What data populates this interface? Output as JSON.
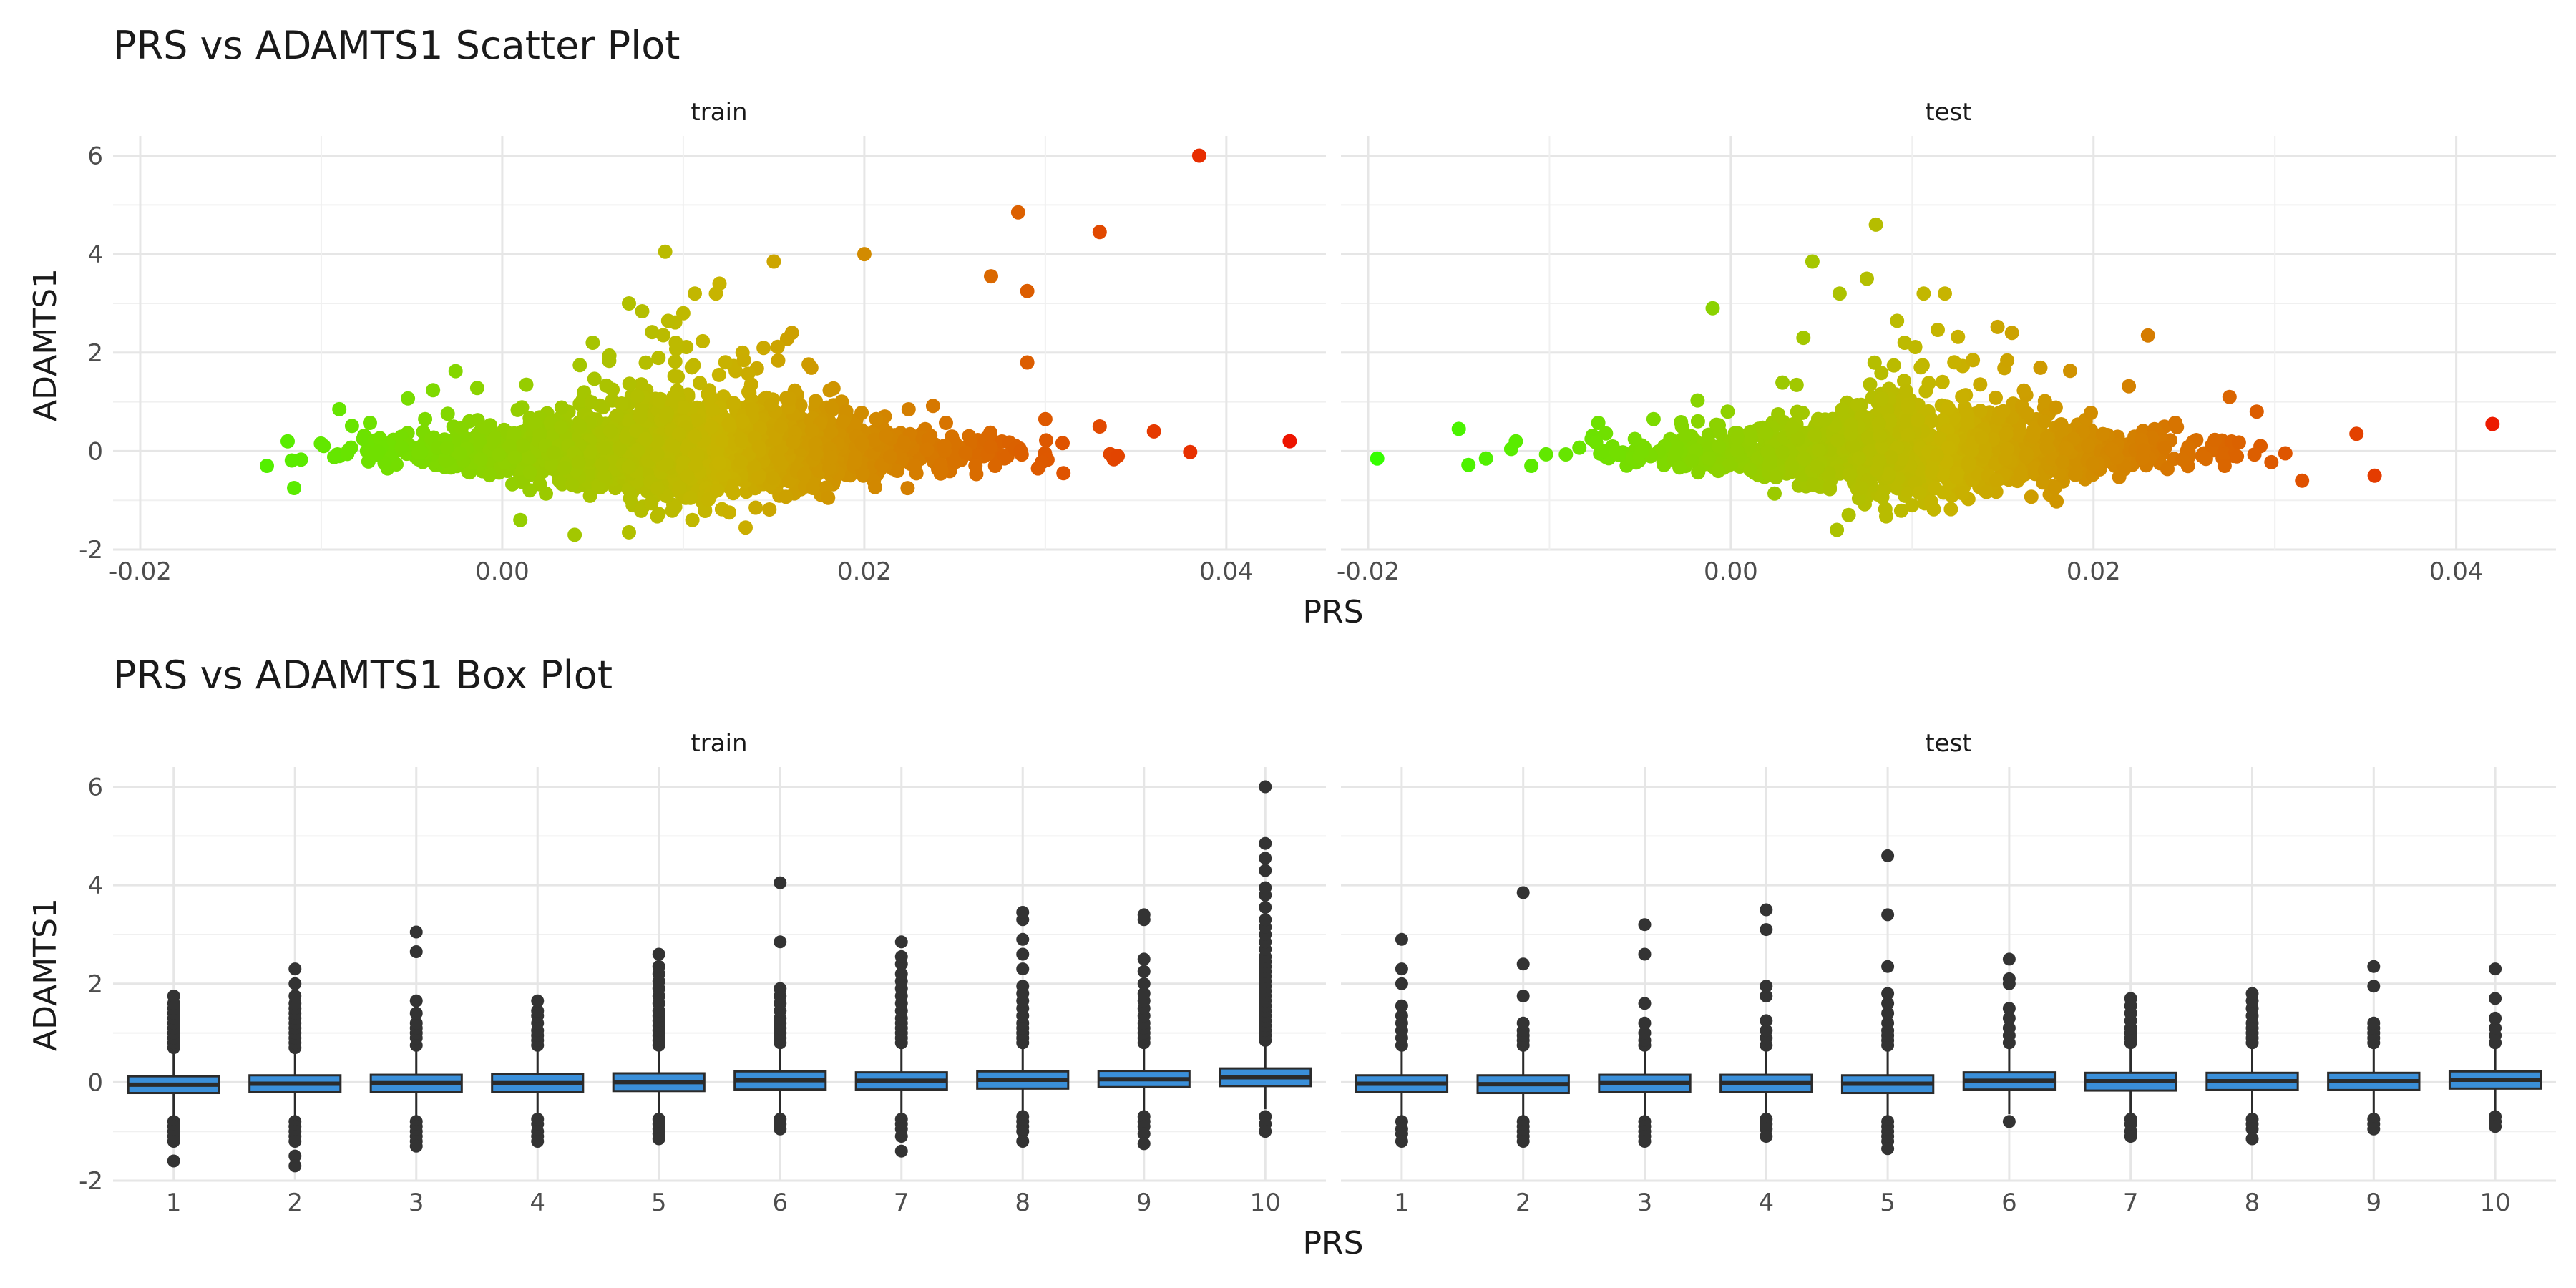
{
  "chart_data": [
    {
      "type": "scatter",
      "title": "PRS vs ADAMTS1 Scatter Plot",
      "xlabel": "PRS",
      "ylabel": "ADAMTS1",
      "facets": [
        "train",
        "test"
      ],
      "xlim": [
        -0.0215,
        0.0455
      ],
      "ylim": [
        -2,
        6.4
      ],
      "x_ticks": [
        -0.02,
        0.0,
        0.02,
        0.04
      ],
      "x_tick_labels": [
        "-0.02",
        "0.00",
        "0.02",
        "0.04"
      ],
      "y_ticks": [
        -2,
        0,
        2,
        4,
        6
      ],
      "y_tick_labels": [
        "-2",
        "0",
        "2",
        "4",
        "6"
      ],
      "color_gradient": {
        "low": "#33ff00",
        "mid": "#c8b400",
        "high": "#ee1100",
        "low_value": -0.02,
        "high_value": 0.044
      },
      "grid": true,
      "legend": "none",
      "panels": {
        "train": {
          "x_range": [
            -0.014,
            0.044
          ],
          "points": [
            [
              0.0385,
              6.0
            ],
            [
              0.0285,
              4.85
            ],
            [
              0.033,
              4.45
            ],
            [
              0.009,
              4.05
            ],
            [
              0.02,
              4.0
            ],
            [
              0.015,
              3.85
            ],
            [
              0.027,
              3.55
            ],
            [
              0.029,
              3.25
            ],
            [
              0.007,
              3.0
            ],
            [
              0.012,
              3.4
            ],
            [
              0.01,
              2.8
            ],
            [
              0.029,
              1.8
            ],
            [
              0.0435,
              0.2
            ],
            [
              0.038,
              -0.02
            ],
            [
              0.036,
              0.4
            ],
            [
              0.033,
              0.5
            ],
            [
              0.034,
              -0.1
            ],
            [
              0.03,
              0.65
            ],
            [
              0.031,
              -0.45
            ],
            [
              -0.009,
              0.85
            ],
            [
              -0.013,
              -0.3
            ],
            [
              -0.0115,
              -0.75
            ],
            [
              0.001,
              -1.4
            ],
            [
              0.004,
              -1.7
            ],
            [
              0.007,
              -1.65
            ],
            [
              0.0105,
              -1.4
            ],
            [
              0.014,
              -1.15
            ],
            [
              0.018,
              -0.95
            ],
            [
              0.005,
              2.2
            ],
            [
              0.016,
              2.4
            ]
          ]
        },
        "test": {
          "x_range": [
            -0.02,
            0.043
          ],
          "points": [
            [
              0.008,
              4.6
            ],
            [
              0.0045,
              3.85
            ],
            [
              0.0075,
              3.5
            ],
            [
              0.006,
              3.2
            ],
            [
              -0.001,
              2.9
            ],
            [
              0.023,
              2.35
            ],
            [
              0.0155,
              2.4
            ],
            [
              0.0275,
              1.1
            ],
            [
              0.042,
              0.55
            ],
            [
              0.0355,
              -0.5
            ],
            [
              0.0315,
              -0.6
            ],
            [
              -0.0195,
              -0.15
            ],
            [
              -0.015,
              0.45
            ],
            [
              -0.0135,
              -0.15
            ],
            [
              -0.011,
              -0.3
            ],
            [
              0.0065,
              -1.3
            ],
            [
              0.01,
              -1.1
            ],
            [
              0.004,
              2.3
            ],
            [
              0.029,
              0.8
            ],
            [
              0.0345,
              0.35
            ]
          ]
        }
      }
    },
    {
      "type": "box",
      "title": "PRS vs ADAMTS1 Box Plot",
      "xlabel": "PRS",
      "ylabel": "ADAMTS1",
      "facets": [
        "train",
        "test"
      ],
      "categories": [
        "1",
        "2",
        "3",
        "4",
        "5",
        "6",
        "7",
        "8",
        "9",
        "10"
      ],
      "ylim": [
        -2,
        6.4
      ],
      "y_ticks": [
        -2,
        0,
        2,
        4,
        6
      ],
      "y_tick_labels": [
        "-2",
        "0",
        "2",
        "4",
        "6"
      ],
      "box_fill": "#3a8fd9",
      "box_stroke": "#2b2b2b",
      "grid": true,
      "legend": "none",
      "panels": {
        "train": [
          {
            "q1": -0.22,
            "median": -0.05,
            "q3": 0.12,
            "whisker_low": -0.72,
            "whisker_high": 0.6,
            "outliers": [
              0.7,
              0.8,
              0.9,
              1.0,
              1.1,
              1.2,
              1.3,
              1.4,
              1.5,
              1.6,
              1.75,
              -0.8,
              -0.9,
              -1.0,
              -1.1,
              -1.2,
              -1.6
            ]
          },
          {
            "q1": -0.2,
            "median": -0.03,
            "q3": 0.14,
            "whisker_low": -0.7,
            "whisker_high": 0.65,
            "outliers": [
              0.7,
              0.8,
              0.9,
              1.0,
              1.1,
              1.2,
              1.3,
              1.4,
              1.5,
              1.6,
              1.75,
              2.0,
              2.3,
              -0.8,
              -0.9,
              -1.0,
              -1.1,
              -1.2,
              -1.5,
              -1.7
            ]
          },
          {
            "q1": -0.2,
            "median": -0.02,
            "q3": 0.15,
            "whisker_low": -0.7,
            "whisker_high": 0.66,
            "outliers": [
              0.75,
              0.9,
              1.0,
              1.1,
              1.2,
              1.4,
              1.65,
              2.65,
              3.05,
              -0.8,
              -0.9,
              -1.0,
              -1.1,
              -1.2,
              -1.3
            ]
          },
          {
            "q1": -0.2,
            "median": -0.02,
            "q3": 0.16,
            "whisker_low": -0.68,
            "whisker_high": 0.67,
            "outliers": [
              0.75,
              0.85,
              0.95,
              1.05,
              1.2,
              1.35,
              1.45,
              1.65,
              -0.75,
              -0.85,
              -1.0,
              -1.1,
              -1.2
            ]
          },
          {
            "q1": -0.18,
            "median": 0.0,
            "q3": 0.18,
            "whisker_low": -0.68,
            "whisker_high": 0.68,
            "outliers": [
              0.75,
              0.85,
              0.95,
              1.05,
              1.15,
              1.25,
              1.35,
              1.45,
              1.6,
              1.75,
              1.9,
              2.05,
              2.2,
              2.35,
              2.6,
              -0.75,
              -0.85,
              -0.95,
              -1.05,
              -1.15
            ]
          },
          {
            "q1": -0.15,
            "median": 0.04,
            "q3": 0.22,
            "whisker_low": -0.65,
            "whisker_high": 0.72,
            "outliers": [
              0.8,
              0.9,
              1.0,
              1.1,
              1.2,
              1.3,
              1.45,
              1.6,
              1.75,
              1.9,
              2.85,
              4.05,
              -0.75,
              -0.85,
              -0.95
            ]
          },
          {
            "q1": -0.15,
            "median": 0.03,
            "q3": 0.2,
            "whisker_low": -0.65,
            "whisker_high": 0.7,
            "outliers": [
              0.8,
              0.9,
              1.0,
              1.1,
              1.2,
              1.3,
              1.45,
              1.6,
              1.75,
              1.9,
              2.05,
              2.2,
              2.4,
              2.55,
              2.85,
              -0.75,
              -0.85,
              -0.95,
              -1.1,
              -1.4
            ]
          },
          {
            "q1": -0.13,
            "median": 0.05,
            "q3": 0.22,
            "whisker_low": -0.62,
            "whisker_high": 0.72,
            "outliers": [
              0.8,
              0.9,
              1.0,
              1.1,
              1.2,
              1.35,
              1.5,
              1.65,
              1.8,
              1.95,
              2.3,
              2.6,
              2.9,
              3.3,
              3.45,
              -0.7,
              -0.8,
              -0.9,
              -1.0,
              -1.2
            ]
          },
          {
            "q1": -0.1,
            "median": 0.06,
            "q3": 0.23,
            "whisker_low": -0.6,
            "whisker_high": 0.74,
            "outliers": [
              0.8,
              0.9,
              1.0,
              1.1,
              1.2,
              1.35,
              1.5,
              1.65,
              1.8,
              2.0,
              2.25,
              2.5,
              3.3,
              3.4,
              -0.7,
              -0.8,
              -0.9,
              -1.05,
              -1.25
            ]
          },
          {
            "q1": -0.08,
            "median": 0.1,
            "q3": 0.28,
            "whisker_low": -0.55,
            "whisker_high": 0.8,
            "outliers": [
              0.85,
              0.95,
              1.05,
              1.15,
              1.25,
              1.35,
              1.45,
              1.55,
              1.65,
              1.75,
              1.85,
              1.95,
              2.05,
              2.15,
              2.25,
              2.35,
              2.45,
              2.55,
              2.7,
              2.85,
              3.0,
              3.15,
              3.3,
              3.55,
              3.8,
              3.95,
              4.3,
              4.55,
              4.85,
              6.0,
              -0.7,
              -0.85,
              -1.0
            ]
          }
        ],
        "test": [
          {
            "q1": -0.2,
            "median": -0.03,
            "q3": 0.14,
            "whisker_low": -0.7,
            "whisker_high": 0.64,
            "outliers": [
              0.75,
              0.9,
              1.05,
              1.2,
              1.35,
              1.55,
              2.0,
              2.3,
              2.9,
              -0.8,
              -0.95,
              -1.05,
              -1.2
            ]
          },
          {
            "q1": -0.22,
            "median": -0.04,
            "q3": 0.14,
            "whisker_low": -0.72,
            "whisker_high": 0.64,
            "outliers": [
              0.75,
              0.85,
              0.95,
              1.05,
              1.2,
              1.75,
              2.4,
              3.85,
              -0.8,
              -0.9,
              -1.0,
              -1.1,
              -1.2
            ]
          },
          {
            "q1": -0.2,
            "median": -0.02,
            "q3": 0.15,
            "whisker_low": -0.7,
            "whisker_high": 0.66,
            "outliers": [
              0.75,
              0.85,
              1.0,
              1.2,
              1.6,
              2.6,
              3.2,
              -0.8,
              -0.9,
              -1.0,
              -1.1,
              -1.2
            ]
          },
          {
            "q1": -0.2,
            "median": -0.02,
            "q3": 0.15,
            "whisker_low": -0.7,
            "whisker_high": 0.66,
            "outliers": [
              0.75,
              0.9,
              1.05,
              1.25,
              1.75,
              1.95,
              3.1,
              3.5,
              -0.75,
              -0.85,
              -0.95,
              -1.1
            ]
          },
          {
            "q1": -0.22,
            "median": -0.03,
            "q3": 0.14,
            "whisker_low": -0.72,
            "whisker_high": 0.64,
            "outliers": [
              0.75,
              0.85,
              0.95,
              1.05,
              1.2,
              1.4,
              1.6,
              1.8,
              2.35,
              3.4,
              4.6,
              -0.8,
              -0.9,
              -1.0,
              -1.1,
              -1.2,
              -1.35
            ]
          },
          {
            "q1": -0.15,
            "median": 0.03,
            "q3": 0.2,
            "whisker_low": -0.65,
            "whisker_high": 0.7,
            "outliers": [
              0.8,
              0.95,
              1.1,
              1.3,
              1.5,
              2.0,
              2.1,
              2.5,
              -0.8
            ]
          },
          {
            "q1": -0.17,
            "median": 0.02,
            "q3": 0.19,
            "whisker_low": -0.66,
            "whisker_high": 0.7,
            "outliers": [
              0.8,
              0.9,
              1.0,
              1.1,
              1.25,
              1.4,
              1.55,
              1.7,
              -0.75,
              -0.85,
              -1.0,
              -1.1
            ]
          },
          {
            "q1": -0.16,
            "median": 0.02,
            "q3": 0.19,
            "whisker_low": -0.66,
            "whisker_high": 0.7,
            "outliers": [
              0.8,
              0.9,
              1.0,
              1.1,
              1.2,
              1.35,
              1.5,
              1.65,
              1.8,
              -0.75,
              -0.85,
              -0.95,
              -1.15
            ]
          },
          {
            "q1": -0.16,
            "median": 0.02,
            "q3": 0.19,
            "whisker_low": -0.66,
            "whisker_high": 0.7,
            "outliers": [
              0.8,
              0.9,
              1.0,
              1.1,
              1.2,
              1.95,
              2.35,
              -0.75,
              -0.85,
              -0.95
            ]
          },
          {
            "q1": -0.13,
            "median": 0.05,
            "q3": 0.22,
            "whisker_low": -0.6,
            "whisker_high": 0.72,
            "outliers": [
              0.8,
              0.95,
              1.1,
              1.3,
              1.7,
              2.3,
              -0.7,
              -0.8,
              -0.9
            ]
          }
        ]
      }
    }
  ]
}
